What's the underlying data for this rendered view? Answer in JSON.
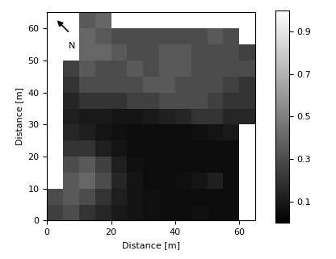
{
  "chart_data": {
    "type": "heatmap",
    "x_label": "Distance [m]",
    "y_label": "Distance [m]",
    "annotations": [
      "N"
    ],
    "color": "gray",
    "xlim": [
      0,
      65
    ],
    "xticks": [
      0,
      20,
      40,
      60
    ],
    "ylim": [
      0,
      65
    ],
    "yticks": [
      0,
      10,
      20,
      30,
      40,
      50,
      60
    ],
    "x_edges": [
      0,
      5,
      10,
      15,
      20,
      25,
      30,
      35,
      40,
      45,
      50,
      55,
      60,
      65
    ],
    "y_edges": [
      0,
      5,
      10,
      15,
      20,
      25,
      30,
      35,
      40,
      45,
      50,
      55,
      60,
      65
    ],
    "cells": [
      [
        0.25,
        0.3,
        0.2,
        0.15,
        0.1,
        0.08,
        0.06,
        0.05,
        0.05,
        0.06,
        0.05,
        0.05,
        null
      ],
      [
        0.3,
        0.35,
        0.3,
        0.2,
        0.12,
        0.08,
        0.06,
        0.05,
        0.05,
        0.05,
        0.05,
        0.05,
        null
      ],
      [
        null,
        0.35,
        0.4,
        0.3,
        0.15,
        0.08,
        0.05,
        0.05,
        0.06,
        0.08,
        0.12,
        0.05,
        null
      ],
      [
        null,
        0.3,
        0.35,
        0.25,
        0.12,
        0.06,
        0.05,
        0.05,
        0.05,
        0.05,
        0.05,
        0.05,
        null
      ],
      [
        null,
        0.2,
        0.2,
        0.12,
        0.08,
        0.05,
        0.05,
        0.05,
        0.05,
        0.05,
        0.05,
        0.05,
        null
      ],
      [
        null,
        0.15,
        0.12,
        0.08,
        0.06,
        0.05,
        0.05,
        0.05,
        0.05,
        0.06,
        0.08,
        0.1,
        null
      ],
      [
        null,
        0.12,
        0.1,
        0.1,
        0.08,
        0.08,
        0.1,
        0.12,
        0.15,
        0.2,
        0.2,
        0.15,
        0.15
      ],
      [
        null,
        0.15,
        0.2,
        0.2,
        0.2,
        0.25,
        0.25,
        0.3,
        0.3,
        0.3,
        0.25,
        0.2,
        0.2
      ],
      [
        null,
        0.2,
        0.3,
        0.3,
        0.3,
        0.3,
        0.35,
        0.35,
        0.3,
        0.3,
        0.3,
        0.25,
        0.2
      ],
      [
        null,
        0.25,
        0.35,
        0.3,
        0.3,
        0.35,
        0.3,
        0.35,
        0.35,
        0.3,
        0.3,
        0.3,
        0.3
      ],
      [
        null,
        null,
        0.4,
        0.4,
        0.35,
        0.3,
        0.3,
        0.35,
        0.35,
        0.3,
        0.3,
        0.3,
        0.25
      ],
      [
        null,
        null,
        0.4,
        0.35,
        0.3,
        0.3,
        0.3,
        0.3,
        0.3,
        0.3,
        0.35,
        0.3,
        null
      ],
      [
        null,
        null,
        0.35,
        0.4,
        null,
        null,
        null,
        null,
        null,
        null,
        null,
        null,
        null
      ]
    ],
    "colorbar_range": [
      0,
      1
    ],
    "colorbar_ticks": [
      0.1,
      0.3,
      0.5,
      0.7,
      0.9
    ]
  }
}
